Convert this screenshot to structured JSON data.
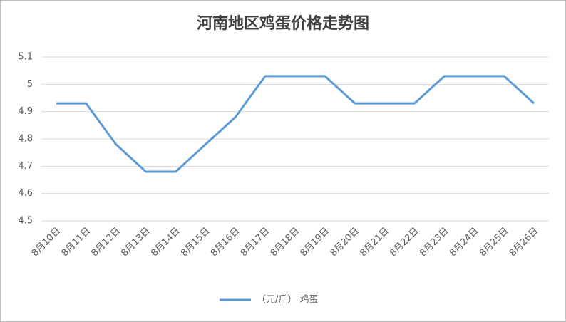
{
  "chart_data": {
    "type": "line",
    "title": "河南地区鸡蛋价格走势图",
    "categories": [
      "8月10日",
      "8月11日",
      "8月12日",
      "8月13日",
      "8月14日",
      "8月15日",
      "8月16日",
      "8月17日",
      "8月18日",
      "8月19日",
      "8月20日",
      "8月21日",
      "8月22日",
      "8月23日",
      "8月24日",
      "8月25日",
      "8月26日"
    ],
    "series": [
      {
        "name": "（元/斤） 鸡蛋",
        "color": "#5b9bd5",
        "values": [
          4.93,
          4.93,
          4.78,
          4.68,
          4.68,
          4.78,
          4.88,
          5.03,
          5.03,
          5.03,
          4.93,
          4.93,
          4.93,
          5.03,
          5.03,
          5.03,
          4.93
        ]
      }
    ],
    "ylim": [
      4.5,
      5.1
    ],
    "yticks": [
      4.5,
      4.6,
      4.7,
      4.8,
      4.9,
      5,
      5.1
    ],
    "grid": true,
    "legend": "bottom"
  }
}
